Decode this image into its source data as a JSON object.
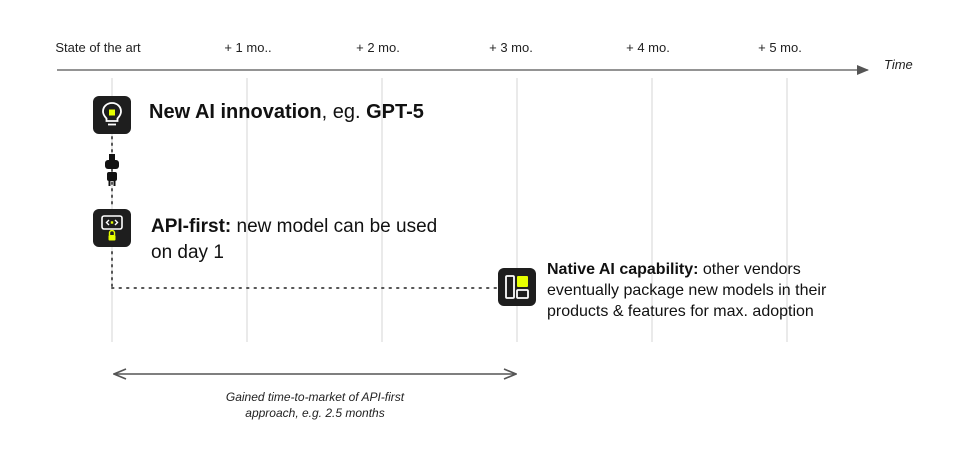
{
  "timeline": {
    "ticks": [
      {
        "label": "State of the art"
      },
      {
        "label": "+ 1 mo.."
      },
      {
        "label": "+ 2 mo."
      },
      {
        "label": "+ 3 mo."
      },
      {
        "label": "+ 4 mo."
      },
      {
        "label": "+ 5 mo."
      }
    ],
    "axis_label": "Time"
  },
  "callouts": {
    "innovation": {
      "icon": "lightbulb-icon",
      "bold": "New AI innovation",
      "middle": ", eg. ",
      "bold2": "GPT-5"
    },
    "plug": {
      "icon": "plug-icon"
    },
    "api_first": {
      "icon": "api-code-lock-icon",
      "bold": "API-first:",
      "text": " new model can be used on day 1"
    },
    "native": {
      "icon": "dashboard-layout-icon",
      "bold": "Native AI capability:",
      "text": " other vendors eventually package new models in their products & features for max. adoption"
    }
  },
  "gained_time": {
    "caption": "Gained time-to-market of API-first approach, e.g. 2.5 months"
  },
  "colors": {
    "accent": "#e6ff00",
    "icon_bg": "#1e1e1e",
    "line": "#555555",
    "grid": "#d0d0d0"
  }
}
